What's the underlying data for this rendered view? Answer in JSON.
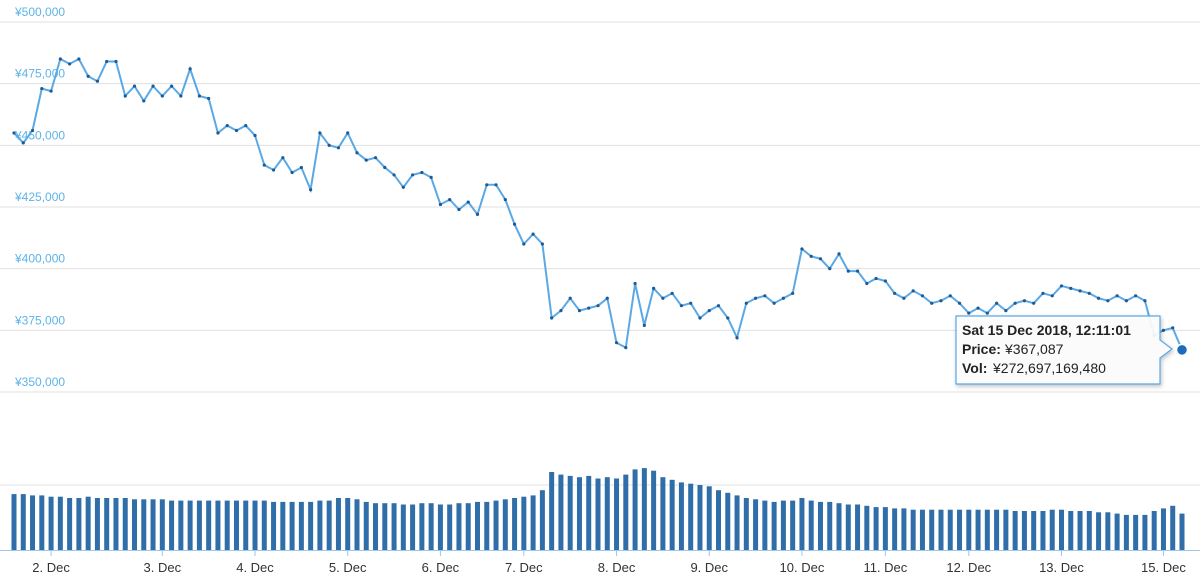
{
  "chart_data": [
    {
      "type": "line",
      "color": "#5aa9e6",
      "marker_color": "#1f5a92",
      "grid": true,
      "ylim": [
        350000,
        500000
      ],
      "yticks": [
        {
          "value": 350000,
          "label": "¥350,000"
        },
        {
          "value": 375000,
          "label": "¥375,000"
        },
        {
          "value": 400000,
          "label": "¥400,000"
        },
        {
          "value": 425000,
          "label": "¥425,000"
        },
        {
          "value": 450000,
          "label": "¥450,000"
        },
        {
          "value": 475000,
          "label": "¥475,000"
        },
        {
          "value": 500000,
          "label": "¥500,000"
        }
      ],
      "values": [
        455000,
        451000,
        456000,
        473000,
        472000,
        485000,
        483000,
        485000,
        478000,
        476000,
        484000,
        484000,
        470000,
        474000,
        468000,
        474000,
        470000,
        474000,
        470000,
        481000,
        470000,
        469000,
        455000,
        458000,
        456000,
        458000,
        454000,
        442000,
        440000,
        445000,
        439000,
        441000,
        432000,
        455000,
        450000,
        449000,
        455000,
        447000,
        444000,
        445000,
        441000,
        438000,
        433000,
        438000,
        439000,
        437000,
        426000,
        428000,
        424000,
        427000,
        422000,
        434000,
        434000,
        428000,
        418000,
        410000,
        414000,
        410000,
        380000,
        383000,
        388000,
        383000,
        384000,
        385000,
        388000,
        370000,
        368000,
        394000,
        377000,
        392000,
        388000,
        390000,
        385000,
        386000,
        380000,
        383000,
        385000,
        380000,
        372000,
        386000,
        388000,
        389000,
        386000,
        388000,
        390000,
        408000,
        405000,
        404000,
        400000,
        406000,
        399000,
        399000,
        394000,
        396000,
        395000,
        390000,
        388000,
        391000,
        389000,
        386000,
        387000,
        389000,
        386000,
        382000,
        384000,
        382000,
        386000,
        383000,
        386000,
        387000,
        386000,
        390000,
        389000,
        393000,
        392000,
        391000,
        390000,
        388000,
        387000,
        389000,
        387000,
        389000,
        387000,
        373000,
        375000,
        376000,
        367087
      ],
      "tooltip": {
        "title": "Sat 15 Dec 2018, 12:11:01",
        "price_label": "Price:",
        "price": "¥367,087",
        "vol_label": "Vol:",
        "vol": "¥272,697,169,480"
      }
    },
    {
      "type": "bar",
      "color": "#2f6ea8",
      "grid": true,
      "ylim": [
        0,
        100
      ],
      "yticks": [
        50
      ],
      "categories": [
        null,
        null,
        null,
        null,
        "2. Dec",
        null,
        null,
        null,
        null,
        null,
        null,
        null,
        null,
        null,
        null,
        null,
        "3. Dec",
        null,
        null,
        null,
        null,
        null,
        null,
        null,
        null,
        null,
        "4. Dec",
        null,
        null,
        null,
        null,
        null,
        null,
        null,
        null,
        null,
        "5. Dec",
        null,
        null,
        null,
        null,
        null,
        null,
        null,
        null,
        null,
        "6. Dec",
        null,
        null,
        null,
        null,
        null,
        null,
        null,
        null,
        "7. Dec",
        null,
        null,
        null,
        null,
        null,
        null,
        null,
        null,
        null,
        "8. Dec",
        null,
        null,
        null,
        null,
        null,
        null,
        null,
        null,
        null,
        "9. Dec",
        null,
        null,
        null,
        null,
        null,
        null,
        null,
        null,
        null,
        "10. Dec",
        null,
        null,
        null,
        null,
        null,
        null,
        null,
        null,
        "11. Dec",
        null,
        null,
        null,
        null,
        null,
        null,
        null,
        null,
        "12. Dec",
        null,
        null,
        null,
        null,
        null,
        null,
        null,
        null,
        null,
        "13. Dec",
        null,
        null,
        null,
        null,
        null,
        null,
        null,
        null,
        null,
        null,
        "15. Dec",
        null,
        null
      ],
      "values": [
        43,
        43,
        42,
        42,
        41,
        41,
        40,
        40,
        41,
        40,
        40,
        40,
        40,
        39,
        39,
        39,
        39,
        38,
        38,
        38,
        38,
        38,
        38,
        38,
        38,
        38,
        38,
        38,
        37,
        37,
        37,
        37,
        37,
        38,
        38,
        40,
        40,
        39,
        37,
        36,
        36,
        36,
        35,
        35,
        36,
        36,
        35,
        35,
        36,
        36,
        37,
        37,
        38,
        39,
        40,
        41,
        42,
        46,
        60,
        58,
        57,
        56,
        57,
        55,
        56,
        55,
        58,
        62,
        63,
        61,
        56,
        54,
        52,
        51,
        50,
        49,
        46,
        44,
        42,
        40,
        39,
        38,
        37,
        38,
        38,
        40,
        38,
        37,
        37,
        36,
        35,
        35,
        34,
        33,
        33,
        32,
        32,
        31,
        31,
        31,
        31,
        31,
        31,
        31,
        31,
        31,
        31,
        31,
        30,
        30,
        30,
        30,
        31,
        31,
        30,
        30,
        30,
        29,
        29,
        28,
        27,
        27,
        27,
        30,
        32,
        34,
        28
      ]
    }
  ]
}
